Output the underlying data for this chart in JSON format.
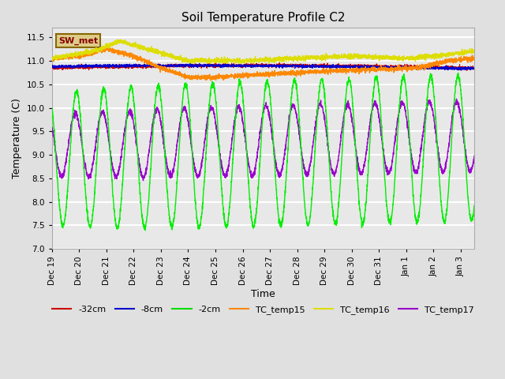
{
  "title": "Soil Temperature Profile C2",
  "xlabel": "Time",
  "ylabel": "Temperature (C)",
  "ylim": [
    7.0,
    11.7
  ],
  "yticks": [
    7.0,
    7.5,
    8.0,
    8.5,
    9.0,
    9.5,
    10.0,
    10.5,
    11.0,
    11.5
  ],
  "background_color": "#e0e0e0",
  "plot_bg_color": "#e8e8e8",
  "legend_labels": [
    "-32cm",
    "-8cm",
    "-2cm",
    "TC_temp15",
    "TC_temp16",
    "TC_temp17"
  ],
  "legend_colors": [
    "#cc0000",
    "#0000cc",
    "#00dd00",
    "#ff8800",
    "#dddd00",
    "#9900cc"
  ],
  "sw_met_box_facecolor": "#ddcc88",
  "sw_met_box_edgecolor": "#886600",
  "sw_met_text_color": "#880000",
  "colors": {
    "minus32cm": "#cc0000",
    "minus8cm": "#0000cc",
    "minus2cm": "#00ee00",
    "TC_temp15": "#ff8800",
    "TC_temp16": "#dddd00",
    "TC_temp17": "#9900cc"
  },
  "tick_labels": [
    "Dec 19",
    "Dec 20",
    "Dec 21",
    "Dec 22",
    "Dec 23",
    "Dec 24",
    "Dec 25",
    "Dec 26",
    "Dec 27",
    "Dec 28",
    "Dec 29",
    "Dec 30",
    "Dec 31",
    "Jan 1",
    "Jan 2",
    "Jan 3"
  ]
}
